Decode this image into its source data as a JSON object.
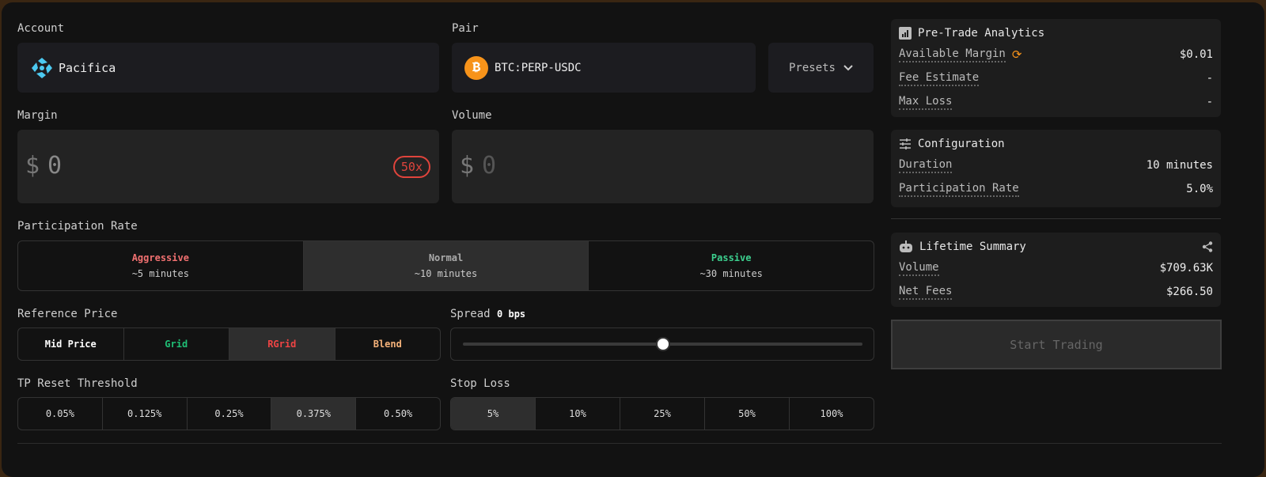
{
  "account": {
    "label": "Account",
    "value": "Pacifica"
  },
  "pair": {
    "label": "Pair",
    "value": "BTC:PERP-USDC",
    "presets": "Presets"
  },
  "margin": {
    "label": "Margin",
    "currency": "$",
    "value": "0",
    "leverage": "50x"
  },
  "volume": {
    "label": "Volume",
    "currency": "$",
    "value": "0"
  },
  "participation": {
    "label": "Participation Rate",
    "options": [
      {
        "name": "Aggressive",
        "sub": "~5 minutes",
        "color": "#f07070"
      },
      {
        "name": "Normal",
        "sub": "~10 minutes",
        "color": "#aaaaaa"
      },
      {
        "name": "Passive",
        "sub": "~30 minutes",
        "color": "#3ccf8e"
      }
    ],
    "selected": "Normal"
  },
  "reference_price": {
    "label": "Reference Price",
    "options": [
      {
        "name": "Mid Price",
        "color": "#ffffff"
      },
      {
        "name": "Grid",
        "color": "#1fbf75"
      },
      {
        "name": "RGrid",
        "color": "#ef4444"
      },
      {
        "name": "Blend",
        "color": "#f5b27a"
      }
    ],
    "selected": "RGrid"
  },
  "spread": {
    "label": "Spread",
    "value": "0 bps",
    "slider_fraction": 0.5
  },
  "tp_reset": {
    "label": "TP Reset Threshold",
    "options": [
      "0.05%",
      "0.125%",
      "0.25%",
      "0.375%",
      "0.50%"
    ],
    "selected": "0.375%"
  },
  "stop_loss": {
    "label": "Stop Loss",
    "options": [
      "5%",
      "10%",
      "25%",
      "50%",
      "100%"
    ],
    "selected": "5%"
  },
  "analytics": {
    "title": "Pre-Trade Analytics",
    "rows": [
      {
        "k": "Available Margin",
        "v": "$0.01"
      },
      {
        "k": "Fee Estimate",
        "v": "-"
      },
      {
        "k": "Max Loss",
        "v": "-"
      }
    ]
  },
  "configuration": {
    "title": "Configuration",
    "rows": [
      {
        "k": "Duration",
        "v": "10 minutes"
      },
      {
        "k": "Participation Rate",
        "v": "5.0%"
      }
    ]
  },
  "lifetime": {
    "title": "Lifetime Summary",
    "rows": [
      {
        "k": "Volume",
        "v": "$709.63K"
      },
      {
        "k": "Net Fees",
        "v": "$266.50"
      }
    ]
  },
  "start_button": "Start Trading",
  "colors": {
    "accent_orange": "#f7931a",
    "leverage_red": "#e0443c",
    "pacifica_cyan": "#4cc9f0"
  }
}
